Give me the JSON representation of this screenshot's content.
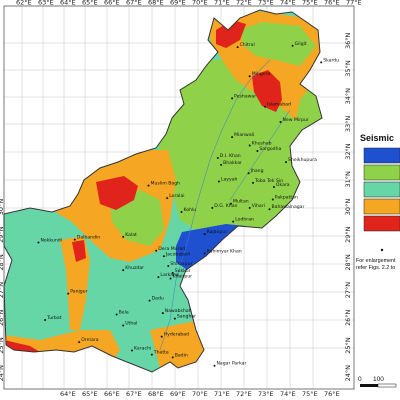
{
  "map": {
    "lon_labels_top": [
      "62°E",
      "63°E",
      "64°E",
      "65°E",
      "66°E",
      "67°E",
      "68°E",
      "69°E",
      "70°E",
      "71°E",
      "72°E",
      "73°E",
      "74°E",
      "75°E",
      "76°E",
      "77°E"
    ],
    "lon_labels_bottom": [
      "64°E",
      "65°E",
      "66°E",
      "67°E",
      "68°E",
      "69°E",
      "70°E",
      "71°E",
      "72°E",
      "73°E",
      "74°E",
      "75°E",
      "76°E"
    ],
    "lat_labels_right": [
      "36°N",
      "35°N",
      "34°N",
      "33°N",
      "32°N",
      "31°N",
      "30°N",
      "29°N",
      "28°N",
      "27°N",
      "26°N",
      "25°N",
      "24°N"
    ],
    "lat_labels_left": [
      "30°N",
      "29°N",
      "28°N",
      "27°N",
      "26°N",
      "25°N",
      "24°N"
    ],
    "colors": {
      "zone_1_blue": "#1e50d0",
      "zone_2_green": "#8fd24a",
      "zone_2b_aqua": "#66d6a6",
      "zone_3_orange": "#f5a623",
      "zone_4_red": "#e0241c",
      "water": "#ffffff",
      "border": "#333333"
    },
    "cities": [
      {
        "name": "Chitral",
        "lon": 71.8,
        "lat": 35.85
      },
      {
        "name": "Gilgit",
        "lon": 74.3,
        "lat": 35.9
      },
      {
        "name": "Skardu",
        "lon": 75.6,
        "lat": 35.3
      },
      {
        "name": "Mingora",
        "lon": 72.35,
        "lat": 34.8
      },
      {
        "name": "Peshawar",
        "lon": 71.55,
        "lat": 34.0
      },
      {
        "name": "Islamabad",
        "lon": 73.05,
        "lat": 33.7
      },
      {
        "name": "New Mirpur",
        "lon": 73.75,
        "lat": 33.15
      },
      {
        "name": "Mianwali",
        "lon": 71.55,
        "lat": 32.6
      },
      {
        "name": "Khushab",
        "lon": 72.35,
        "lat": 32.3
      },
      {
        "name": "Sargodha",
        "lon": 72.7,
        "lat": 32.1
      },
      {
        "name": "Bhakkar",
        "lon": 71.05,
        "lat": 31.6
      },
      {
        "name": "D.I. Khan",
        "lon": 70.9,
        "lat": 31.85
      },
      {
        "name": "Sheikhupura",
        "lon": 74.0,
        "lat": 31.7
      },
      {
        "name": "Jhang",
        "lon": 72.3,
        "lat": 31.3
      },
      {
        "name": "Toba Tek Sin",
        "lon": 72.5,
        "lat": 30.95
      },
      {
        "name": "Okara",
        "lon": 73.45,
        "lat": 30.8
      },
      {
        "name": "Layyah",
        "lon": 70.95,
        "lat": 31.0
      },
      {
        "name": "Multan",
        "lon": 71.5,
        "lat": 30.2
      },
      {
        "name": "Vihari",
        "lon": 72.35,
        "lat": 30.05
      },
      {
        "name": "Pakpattan",
        "lon": 73.4,
        "lat": 30.35
      },
      {
        "name": "Bahawalnagar",
        "lon": 73.25,
        "lat": 30.0
      },
      {
        "name": "D.G. Khan",
        "lon": 70.65,
        "lat": 30.05
      },
      {
        "name": "Lodhran",
        "lon": 71.6,
        "lat": 29.55
      },
      {
        "name": "Rajanpur",
        "lon": 70.3,
        "lat": 29.1
      },
      {
        "name": "Rahimyar Khan",
        "lon": 70.3,
        "lat": 28.4
      },
      {
        "name": "Muslim Bagh",
        "lon": 67.75,
        "lat": 30.85
      },
      {
        "name": "Loralai",
        "lon": 68.6,
        "lat": 30.4
      },
      {
        "name": "Kohlu",
        "lon": 69.25,
        "lat": 29.9
      },
      {
        "name": "Dalbandin",
        "lon": 64.4,
        "lat": 28.9
      },
      {
        "name": "Kalat",
        "lon": 66.6,
        "lat": 29.0
      },
      {
        "name": "Dera Murad",
        "lon": 68.1,
        "lat": 28.5
      },
      {
        "name": "Khuzdar",
        "lon": 66.6,
        "lat": 27.8
      },
      {
        "name": "Jacobabad",
        "lon": 68.45,
        "lat": 28.3
      },
      {
        "name": "Larkana",
        "lon": 68.2,
        "lat": 27.55
      },
      {
        "name": "Shikarpur",
        "lon": 68.65,
        "lat": 27.95
      },
      {
        "name": "Sukkur",
        "lon": 68.85,
        "lat": 27.7
      },
      {
        "name": "Khairpur",
        "lon": 68.75,
        "lat": 27.5
      },
      {
        "name": "Dadu",
        "lon": 67.8,
        "lat": 26.7
      },
      {
        "name": "Nawabshah",
        "lon": 68.4,
        "lat": 26.25
      },
      {
        "name": "Sanghar",
        "lon": 68.95,
        "lat": 26.05
      },
      {
        "name": "Hyderabad",
        "lon": 68.35,
        "lat": 25.4
      },
      {
        "name": "Bela",
        "lon": 66.3,
        "lat": 26.2
      },
      {
        "name": "Uthal",
        "lon": 66.6,
        "lat": 25.8
      },
      {
        "name": "Panjgur",
        "lon": 64.1,
        "lat": 26.95
      },
      {
        "name": "Turbat",
        "lon": 63.05,
        "lat": 26.0
      },
      {
        "name": "Karachi",
        "lon": 67.0,
        "lat": 24.9
      },
      {
        "name": "Thatta",
        "lon": 67.9,
        "lat": 24.75
      },
      {
        "name": "Badin",
        "lon": 68.85,
        "lat": 24.65
      },
      {
        "name": "Ormara",
        "lon": 64.6,
        "lat": 25.2
      },
      {
        "name": "Nagar Parkar",
        "lon": 70.75,
        "lat": 24.35
      },
      {
        "name": "Nokkundi",
        "lon": 62.75,
        "lat": 28.8
      }
    ]
  },
  "legend": {
    "title": "Seismic",
    "swatches": [
      "#1e50d0",
      "#8fd24a",
      "#66d6a6",
      "#f5a623",
      "#e0241c"
    ]
  },
  "note": {
    "line1": "For enlargement",
    "line2": "refer Figs. 2.2 to"
  },
  "scale": {
    "labels": [
      "0",
      "100"
    ]
  }
}
